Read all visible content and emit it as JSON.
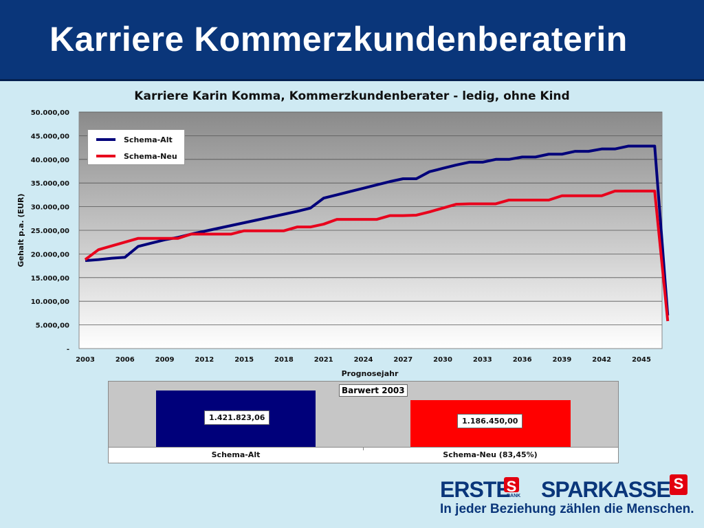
{
  "slide": {
    "title": "Karriere Kommerzkundenberaterin"
  },
  "chart_data": [
    {
      "type": "line",
      "title": "Karriere Karin Komma, Kommerzkundenberater - ledig, ohne Kind",
      "xlabel": "Prognosejahr",
      "ylabel": "Gehalt p.a. (EUR)",
      "ylim": [
        0,
        50000
      ],
      "xlim": [
        2003,
        2046
      ],
      "grid": true,
      "legend_position": "top-left",
      "x_ticks": [
        "2003",
        "2006",
        "2009",
        "2012",
        "2015",
        "2018",
        "2021",
        "2024",
        "2027",
        "2030",
        "2033",
        "2036",
        "2039",
        "2042",
        "2045"
      ],
      "y_ticks": [
        "-",
        "5.000,00",
        "10.000,00",
        "15.000,00",
        "20.000,00",
        "25.000,00",
        "30.000,00",
        "35.000,00",
        "40.000,00",
        "45.000,00",
        "50.000,00"
      ],
      "x": [
        2003,
        2004,
        2005,
        2006,
        2007,
        2008,
        2009,
        2010,
        2011,
        2012,
        2013,
        2014,
        2015,
        2016,
        2017,
        2018,
        2019,
        2020,
        2021,
        2022,
        2023,
        2024,
        2025,
        2026,
        2027,
        2028,
        2029,
        2030,
        2031,
        2032,
        2033,
        2034,
        2035,
        2036,
        2037,
        2038,
        2039,
        2040,
        2041,
        2042,
        2043,
        2044,
        2045,
        2046
      ],
      "series": [
        {
          "name": "Schema-Alt",
          "color": "#00007a",
          "values": [
            18600,
            18800,
            19100,
            19300,
            21600,
            22300,
            23000,
            23500,
            24200,
            24800,
            25400,
            26000,
            26600,
            27200,
            27800,
            28400,
            29000,
            29700,
            31800,
            32500,
            33200,
            33900,
            34600,
            35300,
            35900,
            35900,
            37400,
            38100,
            38800,
            39400,
            39400,
            40000,
            40000,
            40500,
            40500,
            41100,
            41100,
            41700,
            41700,
            42200,
            42200,
            42800,
            42800,
            42800
          ]
        },
        {
          "name": "Schema-Neu",
          "color": "#e8001c",
          "values": [
            18800,
            20900,
            21700,
            22500,
            23300,
            23300,
            23300,
            23300,
            24200,
            24200,
            24200,
            24200,
            24900,
            24900,
            24900,
            24900,
            25700,
            25700,
            26300,
            27300,
            27300,
            27300,
            27300,
            28100,
            28100,
            28200,
            28900,
            29700,
            30500,
            30600,
            30600,
            30600,
            31400,
            31400,
            31400,
            31400,
            32300,
            32300,
            32300,
            32300,
            33300,
            33300,
            33300,
            33300
          ]
        }
      ],
      "drop": {
        "Schema-Alt": 7000,
        "Schema-Neu": 5800
      }
    },
    {
      "type": "bar",
      "title": "Barwert 2003",
      "categories": [
        "Schema-Alt",
        "Schema-Neu (83,45%)"
      ],
      "values": [
        1421823.06,
        1186450.0
      ],
      "value_labels": [
        "1.421.823,06",
        "1.186.450,00"
      ],
      "colors": [
        "#00007a",
        "#ff0000"
      ]
    }
  ],
  "logo": {
    "erste": "ERSTE",
    "bank": "BANK",
    "sparkasse": "SPARKASSE",
    "slogan": "In jeder Beziehung zählen die Menschen."
  }
}
